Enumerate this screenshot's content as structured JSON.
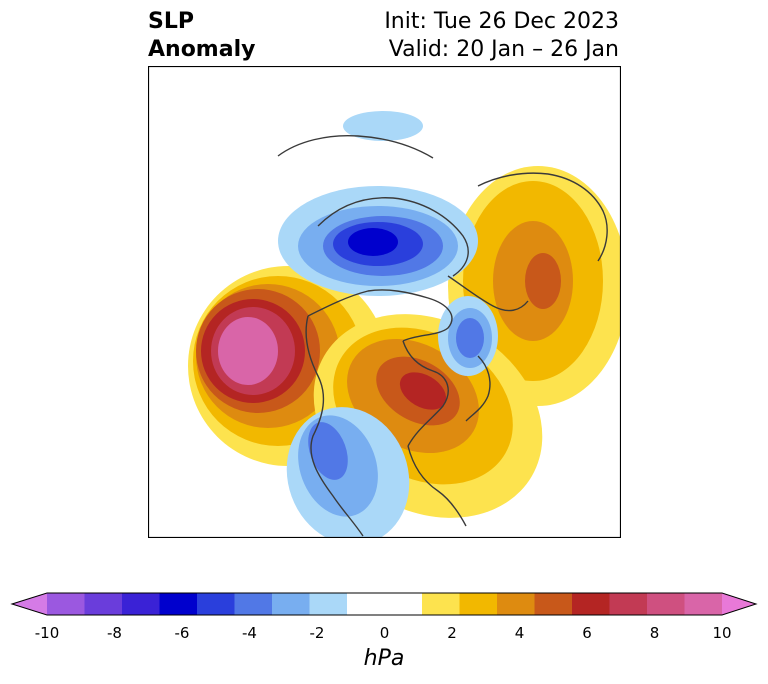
{
  "title": {
    "left_line1": "SLP",
    "left_line2": "Anomaly",
    "right_line1": "Init: Tue 26 Dec 2023",
    "right_line2": "Valid: 20 Jan – 26 Jan"
  },
  "colorbar": {
    "unit": "hPa",
    "ticks": [
      "-10",
      "-8",
      "-6",
      "-4",
      "-2",
      "0",
      "2",
      "4",
      "6",
      "8",
      "10"
    ],
    "range": [
      -10,
      10
    ],
    "bin_colors": [
      "#d57be6",
      "#9b58e0",
      "#6a3ddb",
      "#3a22d6",
      "#0000cd",
      "#2a3fdc",
      "#5178e6",
      "#78aef0",
      "#aad8f8",
      "#ffffff",
      "#ffffff",
      "#fde34e",
      "#f2b800",
      "#de8b10",
      "#c8581a",
      "#b42523",
      "#c23a54",
      "#cf5080",
      "#d965a8",
      "#e879d8"
    ]
  },
  "map": {
    "projection": "polar-stereographic",
    "region": "North Hemisphere / North America centred",
    "field": "sea level pressure anomaly",
    "features": [
      {
        "label": "negative anomaly over Arctic / Barents Sea",
        "min_hPa": -6
      },
      {
        "label": "positive anomaly over Siberia / Urals",
        "max_hPa": 5
      },
      {
        "label": "positive anomaly over Gulf of Alaska",
        "max_hPa": 8
      },
      {
        "label": "positive anomaly over Hudson Bay / Labrador",
        "max_hPa": 6
      },
      {
        "label": "negative anomaly over western United States",
        "min_hPa": -4
      },
      {
        "label": "negative anomaly near Greenland",
        "min_hPa": -4
      }
    ]
  }
}
